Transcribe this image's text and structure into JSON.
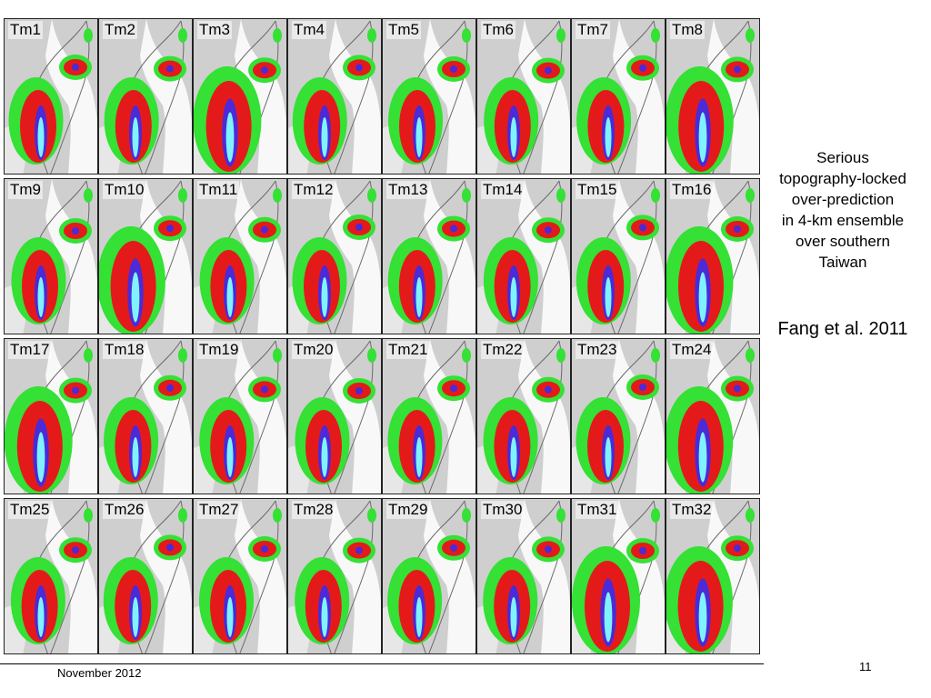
{
  "slide": {
    "caption": [
      "Serious",
      "topography-locked",
      "over-prediction",
      "in 4-km ensemble",
      "over southern",
      "Taiwan"
    ],
    "citation": "Fang et al. 2011",
    "footer_date": "November 2012",
    "page_number": "11"
  },
  "members": [
    "Tm1",
    "Tm2",
    "Tm3",
    "Tm4",
    "Tm5",
    "Tm6",
    "Tm7",
    "Tm8",
    "Tm9",
    "Tm10",
    "Tm11",
    "Tm12",
    "Tm13",
    "Tm14",
    "Tm15",
    "Tm16",
    "Tm17",
    "Tm18",
    "Tm19",
    "Tm20",
    "Tm21",
    "Tm22",
    "Tm23",
    "Tm24",
    "Tm25",
    "Tm26",
    "Tm27",
    "Tm28",
    "Tm29",
    "Tm30",
    "Tm31",
    "Tm32"
  ],
  "colors": {
    "background": "#ffffff",
    "light_rain": "#cfcfcf",
    "moderate_rain": "#34e134",
    "heavy_rain": "#e41a1a",
    "very_heavy_rain": "#4b2ad8",
    "extreme_rain": "#7ff2ff",
    "coastline": "#6a6a6a"
  }
}
